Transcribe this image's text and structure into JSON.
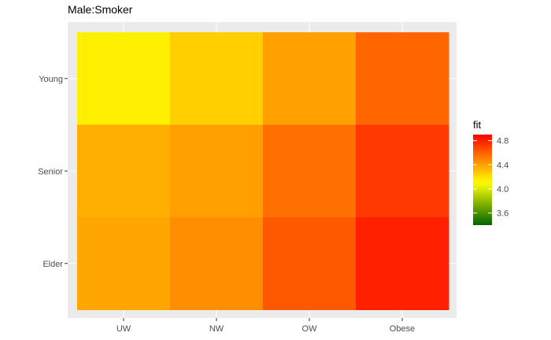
{
  "chart_data": {
    "type": "heatmap",
    "title": "Male:Smoker",
    "xlabel": "",
    "ylabel": "",
    "x_categories": [
      "UW",
      "NW",
      "OW",
      "Obese"
    ],
    "y_categories": [
      "Young",
      "Senior",
      "Elder"
    ],
    "values": [
      [
        4.15,
        4.25,
        4.4,
        4.58
      ],
      [
        4.35,
        4.4,
        4.55,
        4.72
      ],
      [
        4.38,
        4.45,
        4.62,
        4.8
      ]
    ],
    "legend": {
      "title": "fit",
      "ticks": [
        3.6,
        4.0,
        4.4,
        4.8
      ],
      "range": [
        3.4,
        4.9
      ],
      "placement": "right"
    },
    "color_scale": {
      "low": "#006400",
      "mid": "#FFFF00",
      "high": "#FF0000",
      "midpoint": 4.1
    },
    "panel_background": "#EBEBEB",
    "grid": true
  }
}
